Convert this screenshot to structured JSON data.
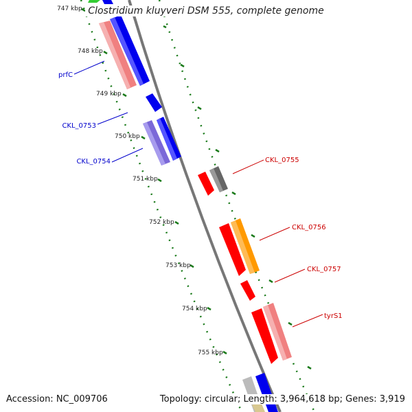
{
  "title": "Clostridium kluyveri DSM 555, complete genome",
  "footer": {
    "accession": "Accession: NC_009706",
    "summary": "Topology: circular; Length: 3,964,618 bp; Genes: 3,919"
  },
  "ticks": [
    "747 kbp",
    "748 kbp",
    "749 kbp",
    "750 kbp",
    "751 kbp",
    "752 kbp",
    "753 kbp",
    "754 kbp",
    "755 kbp"
  ],
  "gene_labels": {
    "prfC": "prfC",
    "ckl0753": "CKL_0753",
    "ckl0754": "CKL_0754",
    "ckl0755": "CKL_0755",
    "ckl0756": "CKL_0756",
    "ckl0757": "CKL_0757",
    "tyrS1": "tyrS1"
  },
  "colors": {
    "backbone": "#808080",
    "tick": "#1a7a1a",
    "left_label": "#0000cc",
    "right_label": "#cc0000",
    "blue": "#0000ee",
    "red": "#ff0000",
    "pink": "#f08080",
    "purple": "#7b68d8",
    "orange": "#ff9900",
    "darkgray": "#666666",
    "lightgray": "#bbbbbb",
    "green": "#33cc33",
    "tan": "#d8c890"
  }
}
